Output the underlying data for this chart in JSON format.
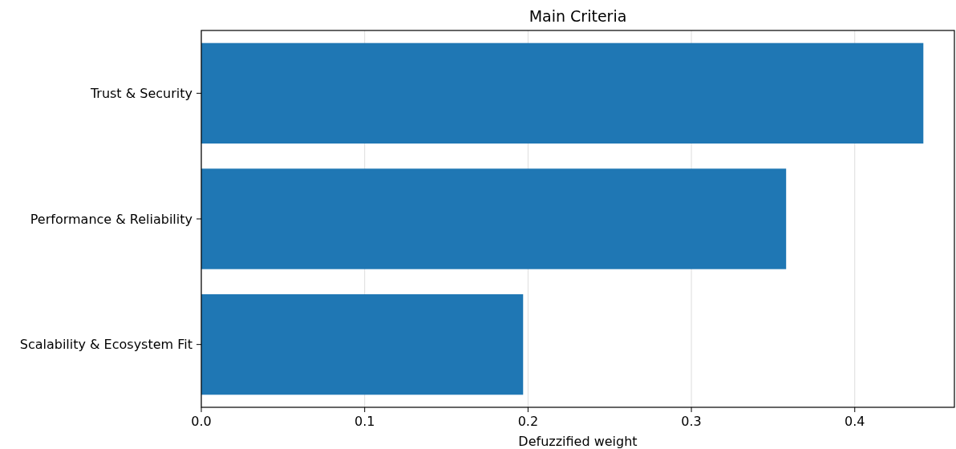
{
  "chart_data": {
    "type": "bar",
    "orientation": "horizontal",
    "title": "Main Criteria",
    "xlabel": "Defuzzified weight",
    "categories": [
      "Trust & Security",
      "Performance & Reliability",
      "Scalability & Ecosystem Fit"
    ],
    "values": [
      0.442,
      0.358,
      0.197
    ],
    "color": "#1f77b4",
    "xlim": [
      0,
      0.461
    ],
    "xticks": [
      {
        "value": 0,
        "label": "0.0"
      },
      0.1,
      0.2,
      0.3,
      0.4
    ],
    "grid": "x"
  }
}
